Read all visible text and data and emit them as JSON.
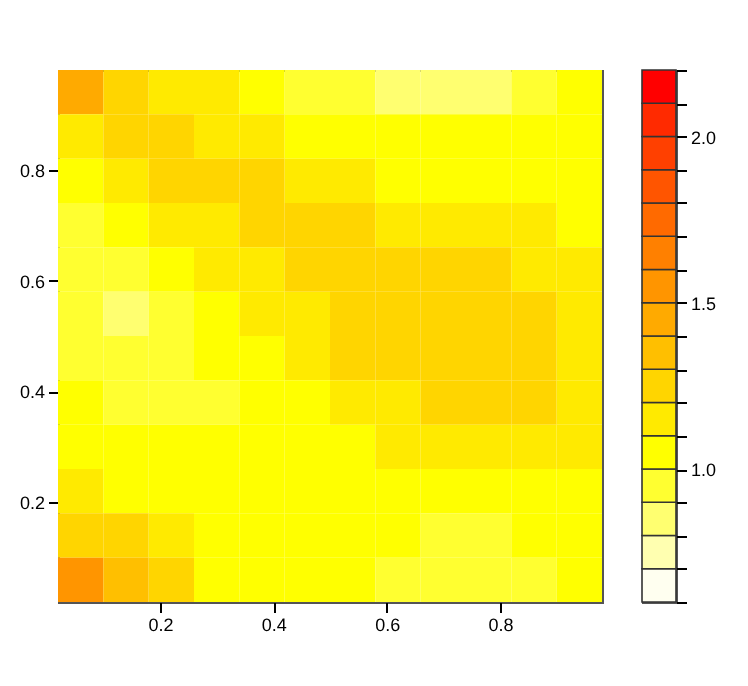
{
  "chart_data": {
    "type": "heatmap",
    "x": [
      0.06,
      0.14,
      0.22,
      0.3,
      0.38,
      0.46,
      0.54,
      0.62,
      0.7,
      0.78,
      0.86,
      0.94
    ],
    "y": [
      0.94,
      0.86,
      0.78,
      0.7,
      0.62,
      0.54,
      0.46,
      0.38,
      0.3,
      0.22,
      0.14,
      0.06
    ],
    "xlim": [
      0.02,
      0.98
    ],
    "ylim": [
      0.02,
      0.98
    ],
    "xticks": [
      0.2,
      0.4,
      0.6,
      0.8
    ],
    "yticks": [
      0.2,
      0.4,
      0.6,
      0.8
    ],
    "cells": [
      [
        1.4,
        1.2,
        1.1,
        1.1,
        1.0,
        0.9,
        0.9,
        0.8,
        0.8,
        0.8,
        0.9,
        1.0
      ],
      [
        1.1,
        1.2,
        1.2,
        1.1,
        1.1,
        1.0,
        1.0,
        1.0,
        1.0,
        1.0,
        1.0,
        1.0
      ],
      [
        1.0,
        1.1,
        1.2,
        1.2,
        1.2,
        1.1,
        1.1,
        1.0,
        1.0,
        1.0,
        1.0,
        1.0
      ],
      [
        0.9,
        1.0,
        1.1,
        1.1,
        1.2,
        1.2,
        1.2,
        1.1,
        1.1,
        1.1,
        1.1,
        1.0
      ],
      [
        0.9,
        0.9,
        1.0,
        1.1,
        1.1,
        1.2,
        1.2,
        1.2,
        1.2,
        1.2,
        1.1,
        1.1
      ],
      [
        0.9,
        0.8,
        0.9,
        1.0,
        1.1,
        1.1,
        1.2,
        1.2,
        1.2,
        1.2,
        1.2,
        1.1
      ],
      [
        0.9,
        0.9,
        0.9,
        1.0,
        1.0,
        1.1,
        1.2,
        1.2,
        1.2,
        1.2,
        1.2,
        1.1
      ],
      [
        1.0,
        0.9,
        0.9,
        0.9,
        1.0,
        1.0,
        1.1,
        1.1,
        1.2,
        1.2,
        1.2,
        1.1
      ],
      [
        1.0,
        1.0,
        1.0,
        1.0,
        1.0,
        1.0,
        1.0,
        1.1,
        1.1,
        1.1,
        1.1,
        1.1
      ],
      [
        1.1,
        1.0,
        1.0,
        1.0,
        1.0,
        1.0,
        1.0,
        1.0,
        1.0,
        1.0,
        1.0,
        1.0
      ],
      [
        1.2,
        1.2,
        1.1,
        1.0,
        1.0,
        1.0,
        1.0,
        1.0,
        0.9,
        0.9,
        1.0,
        1.0
      ],
      [
        1.5,
        1.3,
        1.2,
        1.0,
        1.0,
        1.0,
        1.0,
        0.9,
        0.9,
        0.9,
        0.9,
        1.0
      ]
    ],
    "clim": [
      0.6,
      2.2
    ],
    "cticks": [
      {
        "value": 0.6,
        "label": null
      },
      {
        "value": 0.7,
        "label": null
      },
      {
        "value": 0.8,
        "label": null
      },
      {
        "value": 0.9,
        "label": null
      },
      {
        "value": 1,
        "label": "1.0"
      },
      {
        "value": 1.1,
        "label": null
      },
      {
        "value": 1.2,
        "label": null
      },
      {
        "value": 1.3,
        "label": null
      },
      {
        "value": 1.4,
        "label": null
      },
      1.5,
      {
        "value": 1.6,
        "label": null
      },
      {
        "value": 1.7,
        "label": null
      },
      {
        "value": 1.8,
        "label": null
      },
      {
        "value": 1.9,
        "label": null
      },
      {
        "value": 2,
        "label": "2.0"
      },
      {
        "value": 2.1,
        "label": null
      },
      {
        "value": 2.2,
        "label": null
      }
    ],
    "colors": [
      "#fffff0",
      "#ffffb0",
      "#ffff70",
      "#ffff30",
      "#ffff00",
      "#ffea00",
      "#ffd500",
      "#ffbf00",
      "#ffaa00",
      "#ff9500",
      "#ff8000",
      "#ff6a00",
      "#ff5500",
      "#ff4000",
      "#ff2a00",
      "#ff0000"
    ],
    "grid": false
  }
}
